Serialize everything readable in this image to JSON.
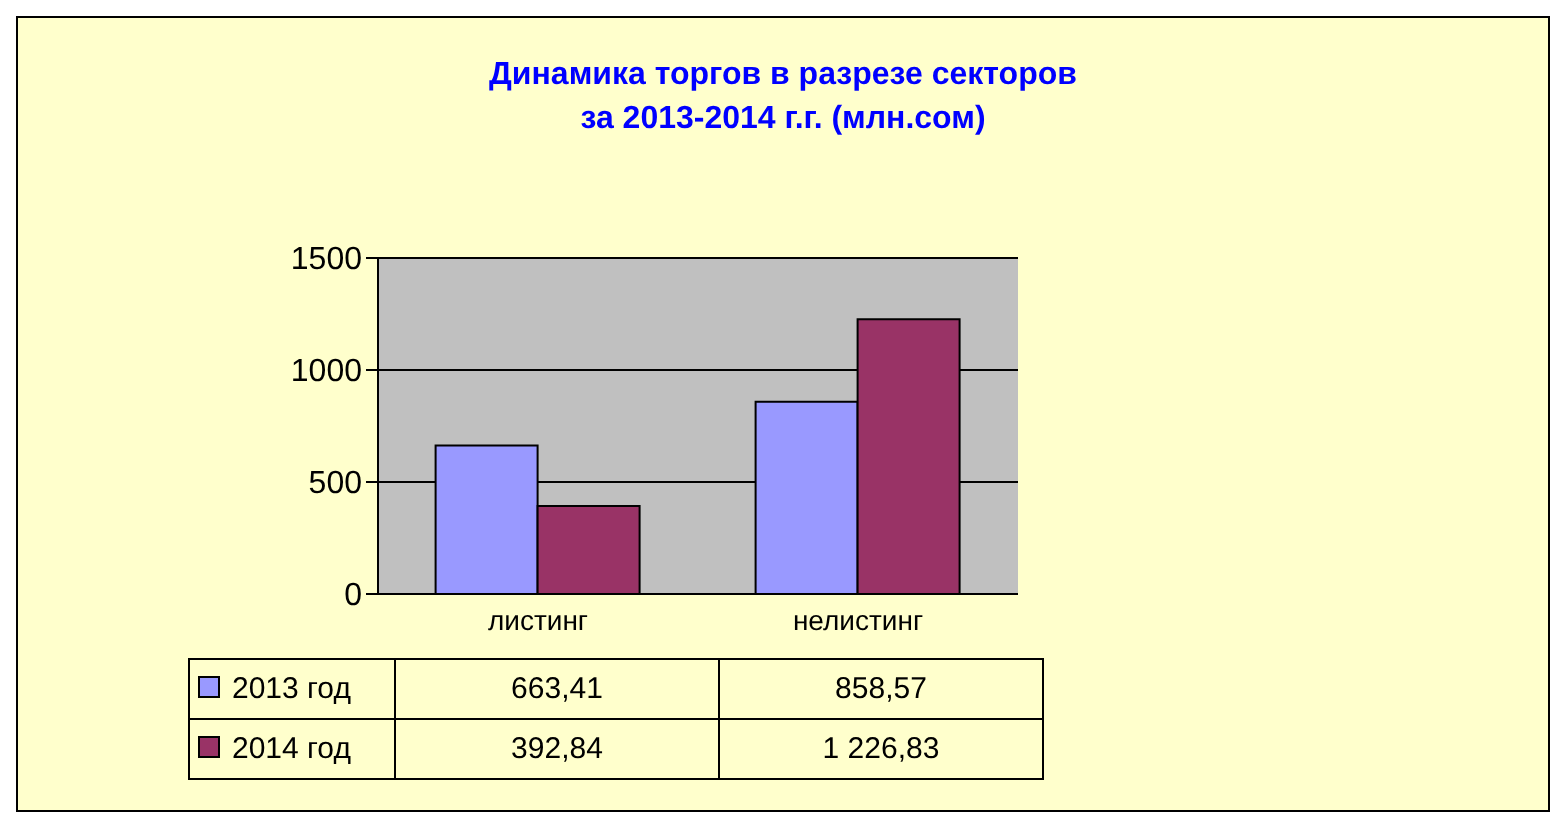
{
  "chart_data": {
    "type": "bar",
    "title": "Динамика торгов в разрезе секторов\nза 2013-2014 г.г. (млн.сом)",
    "categories": [
      "листинг",
      "нелистинг"
    ],
    "series": [
      {
        "name": "2013 год",
        "color": "#9999ff",
        "values": [
          663.41,
          858.57
        ],
        "value_labels": [
          "663,41",
          "858,57"
        ]
      },
      {
        "name": "2014 год",
        "color": "#993366",
        "values": [
          392.84,
          1226.83
        ],
        "value_labels": [
          "392,84",
          "1 226,83"
        ]
      }
    ],
    "ylim": [
      0,
      1500
    ],
    "yticks": [
      0,
      500,
      1000,
      1500
    ],
    "grid": "y",
    "legend": "bottom"
  }
}
